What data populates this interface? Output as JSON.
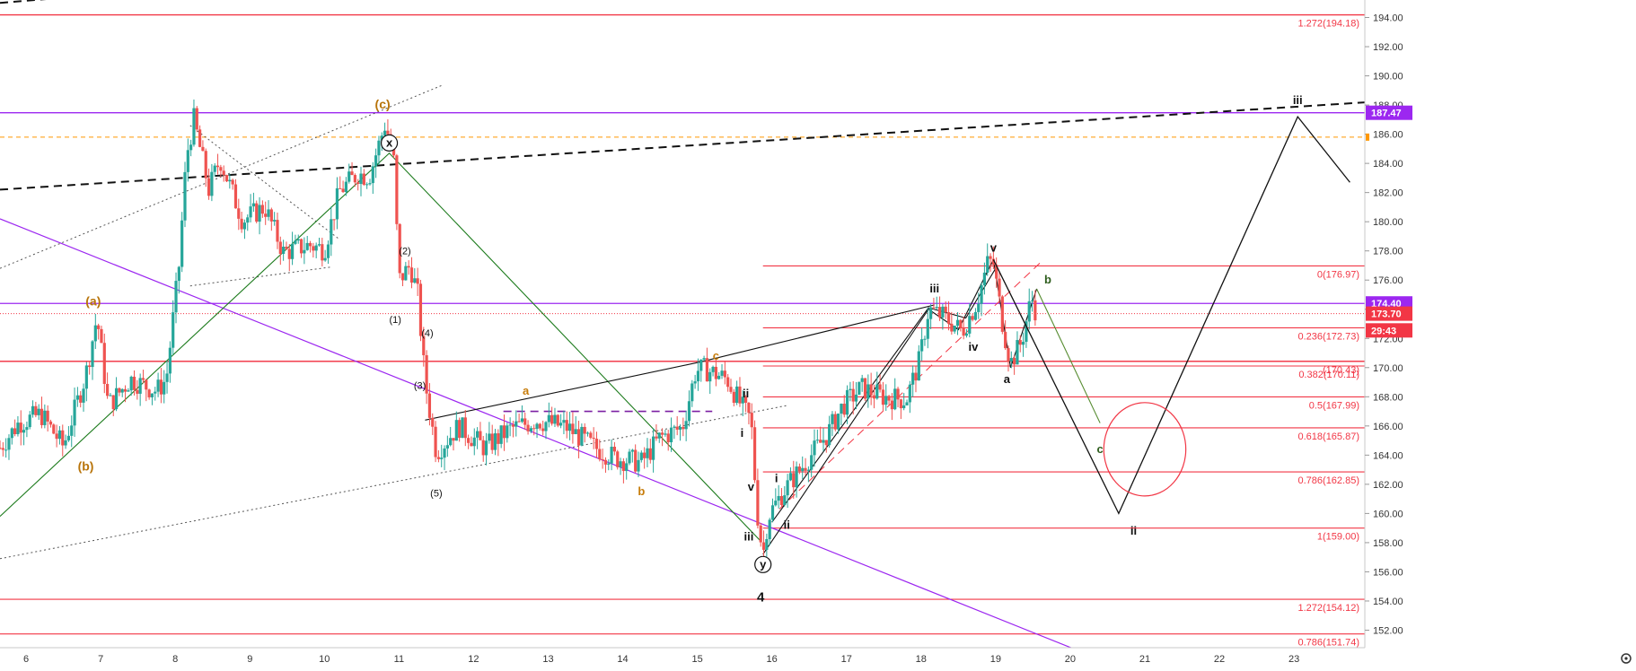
{
  "chart_data": {
    "type": "candlestick",
    "title": "",
    "xlabel": "",
    "ylabel": "",
    "ylim": [
      150.8,
      195.2
    ],
    "xlim": [
      5.65,
      23.95
    ],
    "grid": false,
    "x_ticks": [
      6,
      7,
      8,
      9,
      10,
      11,
      12,
      13,
      14,
      15,
      16,
      17,
      18,
      19,
      20,
      21,
      22,
      23
    ],
    "x_tick_labels": [
      "6",
      "7",
      "8",
      "9",
      "10",
      "11",
      "12",
      "13",
      "14",
      "15",
      "16",
      "17",
      "18",
      "19",
      "20",
      "21",
      "22",
      "23"
    ],
    "y_ticks": [
      152,
      154,
      156,
      158,
      160,
      162,
      164,
      166,
      168,
      170,
      172,
      174,
      176,
      178,
      180,
      182,
      184,
      186,
      188,
      190,
      192,
      194
    ],
    "y_tick_labels": [
      "152.00",
      "154.00",
      "156.00",
      "158.00",
      "160.00",
      "162.00",
      "164.00",
      "166.00",
      "168.00",
      "170.00",
      "172.00",
      "174.00",
      "176.00",
      "178.00",
      "180.00",
      "182.00",
      "184.00",
      "186.00",
      "188.00",
      "190.00",
      "192.00",
      "194.00"
    ],
    "price_close_path": [
      [
        5.65,
        164.5
      ],
      [
        5.9,
        166.2
      ],
      [
        6.2,
        166.8
      ],
      [
        6.5,
        164.6
      ],
      [
        6.8,
        169.5
      ],
      [
        6.95,
        173.5
      ],
      [
        7.1,
        167.4
      ],
      [
        7.4,
        169.2
      ],
      [
        7.75,
        168.4
      ],
      [
        7.88,
        169.2
      ],
      [
        8.05,
        177.0
      ],
      [
        8.15,
        184.5
      ],
      [
        8.25,
        187.0
      ],
      [
        8.45,
        182.2
      ],
      [
        8.6,
        184.3
      ],
      [
        8.9,
        180.1
      ],
      [
        9.2,
        181.0
      ],
      [
        9.45,
        177.9
      ],
      [
        9.8,
        178.4
      ],
      [
        10.0,
        178.1
      ],
      [
        10.2,
        182.1
      ],
      [
        10.45,
        183.3
      ],
      [
        10.6,
        183.1
      ],
      [
        10.82,
        186.8
      ],
      [
        10.93,
        184.1
      ],
      [
        11.0,
        176.0
      ],
      [
        11.15,
        177.0
      ],
      [
        11.25,
        175.0
      ],
      [
        11.35,
        169.0
      ],
      [
        11.5,
        164.2
      ],
      [
        11.8,
        166.0
      ],
      [
        12.15,
        164.5
      ],
      [
        12.5,
        165.8
      ],
      [
        12.85,
        166.4
      ],
      [
        13.25,
        165.9
      ],
      [
        13.6,
        164.6
      ],
      [
        13.9,
        163.8
      ],
      [
        14.25,
        163.5
      ],
      [
        14.5,
        165.2
      ],
      [
        14.8,
        165.9
      ],
      [
        14.98,
        169.8
      ],
      [
        15.1,
        169.9
      ],
      [
        15.4,
        169.2
      ],
      [
        15.6,
        167.3
      ],
      [
        15.72,
        166.4
      ],
      [
        15.8,
        160.2
      ],
      [
        15.88,
        157.1
      ],
      [
        15.95,
        159.8
      ],
      [
        16.15,
        161.5
      ],
      [
        16.45,
        163.5
      ],
      [
        16.75,
        165.5
      ],
      [
        16.95,
        167.4
      ],
      [
        17.2,
        168.6
      ],
      [
        17.5,
        168.0
      ],
      [
        17.8,
        167.8
      ],
      [
        17.98,
        170.5
      ],
      [
        18.1,
        174.0
      ],
      [
        18.3,
        173.5
      ],
      [
        18.55,
        172.5
      ],
      [
        18.75,
        174.5
      ],
      [
        18.9,
        177.3
      ],
      [
        18.97,
        177.1
      ],
      [
        19.1,
        172.8
      ],
      [
        19.2,
        170.3
      ],
      [
        19.35,
        171.8
      ],
      [
        19.48,
        174.8
      ],
      [
        19.55,
        173.7
      ]
    ],
    "wave_labels": [
      {
        "text": "(a)",
        "x": 6.9,
        "y": 174.5
      },
      {
        "text": "(b)",
        "x": 6.8,
        "y": 163.2
      },
      {
        "text": "(c)",
        "x": 10.78,
        "y": 188.0
      },
      {
        "text": "x",
        "x": 10.87,
        "y": 185.4
      },
      {
        "text": "(1)",
        "x": 10.95,
        "y": 173.3
      },
      {
        "text": "(2)",
        "x": 11.08,
        "y": 178.0
      },
      {
        "text": "(3)",
        "x": 11.28,
        "y": 168.8
      },
      {
        "text": "(4)",
        "x": 11.38,
        "y": 172.4
      },
      {
        "text": "(5)",
        "x": 11.5,
        "y": 161.4
      },
      {
        "text": "a",
        "x": 12.7,
        "y": 168.4
      },
      {
        "text": "b",
        "x": 14.25,
        "y": 161.5
      },
      {
        "text": "c",
        "x": 15.25,
        "y": 170.8
      },
      {
        "text": "ii",
        "x": 15.65,
        "y": 168.2
      },
      {
        "text": "i",
        "x": 15.6,
        "y": 165.5
      },
      {
        "text": "v",
        "x": 15.72,
        "y": 161.8
      },
      {
        "text": "iii",
        "x": 15.69,
        "y": 158.4
      },
      {
        "text": "y",
        "x": 15.88,
        "y": 156.5
      },
      {
        "text": "4",
        "x": 15.85,
        "y": 154.2
      },
      {
        "text": "i",
        "x": 16.06,
        "y": 162.4
      },
      {
        "text": "ii",
        "x": 16.2,
        "y": 159.2
      },
      {
        "text": "iii",
        "x": 18.18,
        "y": 175.4
      },
      {
        "text": "iv",
        "x": 18.7,
        "y": 171.4
      },
      {
        "text": "v",
        "x": 18.97,
        "y": 178.2
      },
      {
        "text": "a",
        "x": 19.15,
        "y": 169.2
      },
      {
        "text": "b",
        "x": 19.7,
        "y": 176.0
      },
      {
        "text": "c",
        "x": 20.4,
        "y": 164.4
      },
      {
        "text": "ii",
        "x": 20.85,
        "y": 158.8
      },
      {
        "text": "iii",
        "x": 23.05,
        "y": 188.3
      }
    ],
    "horizontal_lines": [
      {
        "y": 194.18,
        "color": "#f23645",
        "label": "1.272(194.18)"
      },
      {
        "y": 187.47,
        "color": "#9c27f0",
        "label": ""
      },
      {
        "y": 185.8,
        "color": "#ff9800",
        "label": "",
        "dashed": true
      },
      {
        "y": 174.4,
        "color": "#9c27f0",
        "label": ""
      },
      {
        "y": 173.7,
        "color": "#f23645",
        "label": "",
        "dotted": true
      },
      {
        "y": 170.43,
        "color": "#f23645",
        "label": ""
      }
    ],
    "fibonacci_levels": [
      {
        "label": "0(176.97)",
        "y": 176.97
      },
      {
        "label": "0.236(172.73)",
        "y": 172.73
      },
      {
        "label": "0.382(170.11)",
        "y": 170.11
      },
      {
        "label": "0.5(167.99)",
        "y": 167.99
      },
      {
        "label": "0.618(165.87)",
        "y": 165.87
      },
      {
        "label": "0.786(162.85)",
        "y": 162.85
      },
      {
        "label": "1(159.00)",
        "y": 159.0
      },
      {
        "label": "1.272(154.12)",
        "y": 154.12
      },
      {
        "label": "0.786(151.74)",
        "y": 151.74
      },
      {
        "label": "(170.43)",
        "y": 170.43
      }
    ],
    "price_labels": [
      {
        "text": "187.47",
        "y": 187.47,
        "color": "#9c27f0"
      },
      {
        "text": "174.40",
        "y": 174.4,
        "color": "#9c27f0"
      },
      {
        "text": "173.70",
        "y": 173.7,
        "color": "#f23645"
      },
      {
        "text": "29:43",
        "y": 172.55,
        "color": "#f23645"
      }
    ],
    "projection_path": [
      [
        18.97,
        177.4
      ],
      [
        20.65,
        160.0
      ],
      [
        23.05,
        187.2
      ],
      [
        23.75,
        182.7
      ]
    ],
    "green_projection": [
      [
        19.55,
        175.4
      ],
      [
        20.4,
        166.2
      ]
    ],
    "wave_overlay_lines": [
      {
        "color": "#1b7a1b",
        "points": [
          [
            5.65,
            159.8
          ],
          [
            10.87,
            184.7
          ],
          [
            15.85,
            158.1
          ]
        ]
      },
      {
        "color": "#111111",
        "points": [
          [
            11.35,
            166.4
          ],
          [
            15.05,
            170.4
          ],
          [
            18.18,
            174.3
          ]
        ]
      },
      {
        "color": "#111111",
        "points": [
          [
            15.88,
            157.2
          ],
          [
            18.1,
            174.0
          ],
          [
            18.5,
            172.6
          ],
          [
            18.97,
            177.4
          ],
          [
            19.2,
            170.0
          ],
          [
            19.55,
            175.4
          ]
        ]
      },
      {
        "color": "#111111",
        "points": [
          [
            16.0,
            159.4
          ],
          [
            18.1,
            174.1
          ],
          [
            18.6,
            173.4
          ],
          [
            19.0,
            176.8
          ]
        ]
      }
    ],
    "trend_lines": [
      {
        "color": "#111111",
        "style": "dashed",
        "width": 2,
        "points": [
          [
            5.65,
            182.2
          ],
          [
            24.0,
            188.2
          ]
        ]
      },
      {
        "color": "#111111",
        "style": "dashed",
        "width": 2,
        "points": [
          [
            5.65,
            195.0
          ],
          [
            8.5,
            196.2
          ]
        ]
      },
      {
        "color": "#9c27f0",
        "style": "solid",
        "width": 1.2,
        "points": [
          [
            5.65,
            180.2
          ],
          [
            20.4,
            150.0
          ]
        ]
      },
      {
        "color": "#7b1fa2",
        "style": "dashed",
        "width": 1.6,
        "points": [
          [
            12.4,
            167.0
          ],
          [
            15.2,
            167.0
          ]
        ]
      },
      {
        "color": "#555555",
        "style": "dotted",
        "width": 1,
        "points": [
          [
            5.65,
            176.8
          ],
          [
            11.6,
            189.4
          ]
        ]
      },
      {
        "color": "#555555",
        "style": "dotted",
        "width": 1,
        "points": [
          [
            5.65,
            156.9
          ],
          [
            16.2,
            167.4
          ]
        ]
      },
      {
        "color": "#555555",
        "style": "dotted",
        "width": 1,
        "points": [
          [
            8.2,
            175.6
          ],
          [
            10.1,
            176.9
          ]
        ]
      },
      {
        "color": "#555555",
        "style": "dotted",
        "width": 1,
        "points": [
          [
            8.2,
            186.6
          ],
          [
            10.2,
            178.8
          ]
        ]
      },
      {
        "color": "#f23645",
        "style": "dashed",
        "width": 1,
        "points": [
          [
            16.1,
            160.3
          ],
          [
            19.6,
            177.2
          ]
        ]
      }
    ],
    "ellipse": {
      "center": [
        21.0,
        164.4
      ],
      "rx_days": 0.55,
      "ry_price": 3.2,
      "color": "#f23645"
    },
    "highlight_circles": [
      {
        "x": 10.87,
        "y": 185.4
      },
      {
        "x": 15.88,
        "y": 156.5
      }
    ]
  },
  "ui": {
    "settings_icon": "gear-icon"
  }
}
